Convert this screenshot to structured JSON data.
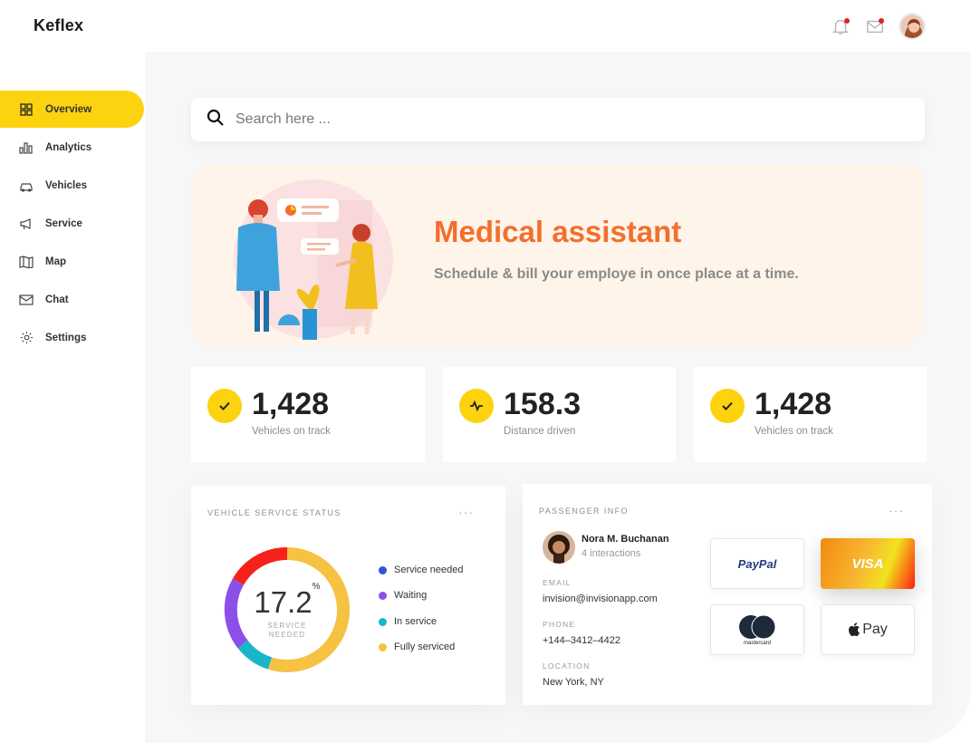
{
  "app": {
    "brand": "Keflex"
  },
  "header": {
    "notification_icon": "bell-icon",
    "mail_icon": "mail-icon",
    "badge_color": "#e2231a"
  },
  "sidebar": {
    "items": [
      {
        "label": "Overview",
        "icon": "grid-icon",
        "active": true
      },
      {
        "label": "Analytics",
        "icon": "bar-chart-icon",
        "active": false
      },
      {
        "label": "Vehicles",
        "icon": "car-icon",
        "active": false
      },
      {
        "label": "Service",
        "icon": "megaphone-icon",
        "active": false
      },
      {
        "label": "Map",
        "icon": "map-icon",
        "active": false
      },
      {
        "label": "Chat",
        "icon": "envelope-icon",
        "active": false
      },
      {
        "label": "Settings",
        "icon": "gear-icon",
        "active": false
      }
    ],
    "accent": "#fdd20f"
  },
  "search": {
    "placeholder": "Search here ..."
  },
  "banner": {
    "title": "Medical assistant",
    "subtitle": "Schedule & bill your employe in once place at a time.",
    "title_color": "#f26f2d"
  },
  "stats": [
    {
      "value": "1,428",
      "label": "Vehicles on track",
      "icon": "check-icon"
    },
    {
      "value": "158.3",
      "label": "Distance driven",
      "icon": "pulse-icon"
    },
    {
      "value": "1,428",
      "label": "Vehicles on track",
      "icon": "check-icon"
    }
  ],
  "service_status": {
    "title": "VEHICLE SERVICE STATUS",
    "more": "···",
    "center_value": "17.2",
    "center_unit": "%",
    "center_label_line1": "SERVICE",
    "center_label_line2": "NEEDED",
    "legend": [
      {
        "label": "Service needed",
        "color": "#2f55d4"
      },
      {
        "label": "Waiting",
        "color": "#8c4fe8"
      },
      {
        "label": "In service",
        "color": "#19b6c8"
      },
      {
        "label": "Fully serviced",
        "color": "#f5c242"
      }
    ]
  },
  "passenger": {
    "title": "PASSENGER INFO",
    "more": "···",
    "name": "Nora M. Buchanan",
    "interactions": "4 interactions",
    "email_label": "EMAIL",
    "email": "invision@invisionapp.com",
    "phone_label": "PHONE",
    "phone": "+144–3412–4422",
    "location_label": "LOCATION",
    "location": "New York, NY"
  },
  "payments": {
    "paypal": "PayPal",
    "visa": "VISA",
    "mastercard": "mastercard",
    "applepay": "Pay"
  }
}
